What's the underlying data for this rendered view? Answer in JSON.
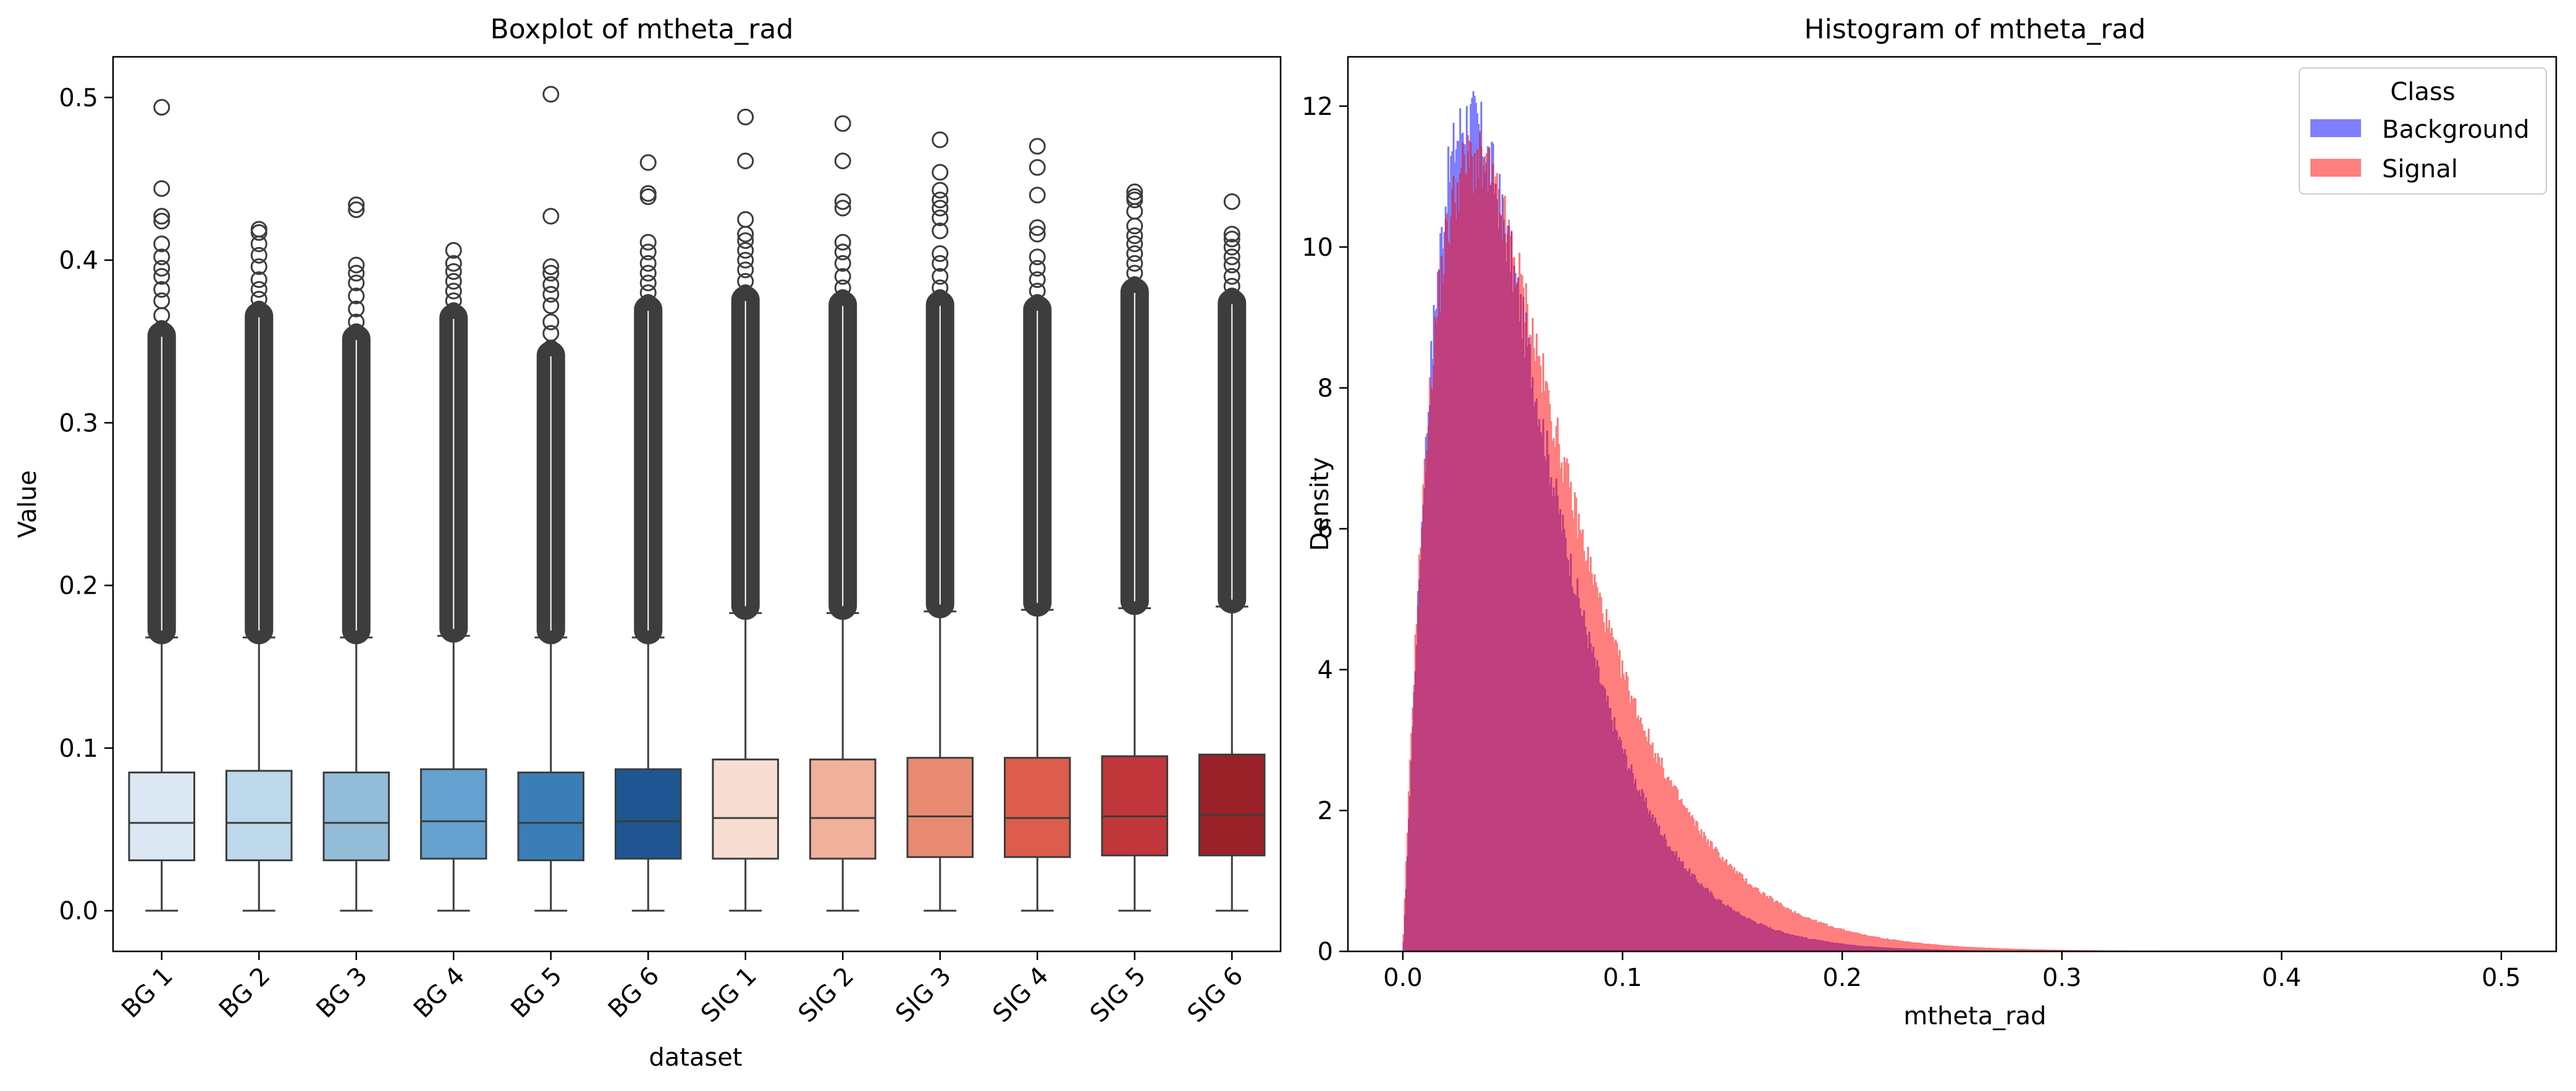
{
  "chart_data": [
    {
      "type": "box",
      "title": "Boxplot of mtheta_rad",
      "xlabel": "dataset",
      "ylabel": "Value",
      "ylim": [
        -0.025,
        0.525
      ],
      "yticks": [
        0.0,
        0.1,
        0.2,
        0.3,
        0.4,
        0.5
      ],
      "ytick_labels": [
        "0.0",
        "0.1",
        "0.2",
        "0.3",
        "0.4",
        "0.5"
      ],
      "categories": [
        "BG 1",
        "BG 2",
        "BG 3",
        "BG 4",
        "BG 5",
        "BG 6",
        "SIG 1",
        "SIG 2",
        "SIG 3",
        "SIG 4",
        "SIG 5",
        "SIG 6"
      ],
      "boxes": [
        {
          "min": 0.0,
          "q1": 0.031,
          "median": 0.054,
          "q3": 0.085,
          "whisker_high": 0.168,
          "fill": "#dbe8f4",
          "fliers": [
            0.494,
            0.444,
            0.427,
            0.424,
            0.41,
            0.402,
            0.395,
            0.39,
            0.382,
            0.375,
            0.366,
            0.358
          ]
        },
        {
          "min": 0.0,
          "q1": 0.031,
          "median": 0.054,
          "q3": 0.086,
          "whisker_high": 0.168,
          "fill": "#bdd7eb",
          "fliers": [
            0.419,
            0.417,
            0.41,
            0.403,
            0.396,
            0.388,
            0.382,
            0.376,
            0.37
          ]
        },
        {
          "min": 0.0,
          "q1": 0.031,
          "median": 0.054,
          "q3": 0.085,
          "whisker_high": 0.168,
          "fill": "#93bcd9",
          "fliers": [
            0.434,
            0.431,
            0.397,
            0.392,
            0.386,
            0.378,
            0.37,
            0.362,
            0.356
          ]
        },
        {
          "min": 0.0,
          "q1": 0.032,
          "median": 0.055,
          "q3": 0.087,
          "whisker_high": 0.169,
          "fill": "#65a2cf",
          "fliers": [
            0.406,
            0.398,
            0.393,
            0.387,
            0.381,
            0.375,
            0.369
          ]
        },
        {
          "min": 0.0,
          "q1": 0.031,
          "median": 0.054,
          "q3": 0.085,
          "whisker_high": 0.168,
          "fill": "#3b7db7",
          "fliers": [
            0.502,
            0.427,
            0.396,
            0.392,
            0.385,
            0.379,
            0.372,
            0.362,
            0.355,
            0.346
          ]
        },
        {
          "min": 0.0,
          "q1": 0.032,
          "median": 0.055,
          "q3": 0.087,
          "whisker_high": 0.168,
          "fill": "#1f5691",
          "fliers": [
            0.46,
            0.441,
            0.439,
            0.411,
            0.405,
            0.398,
            0.392,
            0.386,
            0.38,
            0.374
          ]
        },
        {
          "min": 0.0,
          "q1": 0.032,
          "median": 0.057,
          "q3": 0.093,
          "whisker_high": 0.183,
          "fill": "#f8ded2",
          "fliers": [
            0.488,
            0.461,
            0.425,
            0.416,
            0.412,
            0.406,
            0.4,
            0.394,
            0.387,
            0.38
          ]
        },
        {
          "min": 0.0,
          "q1": 0.032,
          "median": 0.057,
          "q3": 0.093,
          "whisker_high": 0.183,
          "fill": "#f1b09a",
          "fliers": [
            0.484,
            0.461,
            0.436,
            0.432,
            0.411,
            0.405,
            0.398,
            0.39,
            0.383,
            0.377
          ]
        },
        {
          "min": 0.0,
          "q1": 0.033,
          "median": 0.058,
          "q3": 0.094,
          "whisker_high": 0.184,
          "fill": "#e88a72",
          "fliers": [
            0.474,
            0.454,
            0.443,
            0.437,
            0.432,
            0.426,
            0.418,
            0.404,
            0.398,
            0.39,
            0.383,
            0.377
          ]
        },
        {
          "min": 0.0,
          "q1": 0.033,
          "median": 0.057,
          "q3": 0.094,
          "whisker_high": 0.185,
          "fill": "#dc5d4b",
          "fliers": [
            0.47,
            0.457,
            0.44,
            0.42,
            0.416,
            0.402,
            0.395,
            0.388,
            0.381,
            0.374
          ]
        },
        {
          "min": 0.0,
          "q1": 0.034,
          "median": 0.058,
          "q3": 0.095,
          "whisker_high": 0.186,
          "fill": "#c0363a",
          "fliers": [
            0.442,
            0.439,
            0.437,
            0.43,
            0.421,
            0.415,
            0.41,
            0.404,
            0.398,
            0.392,
            0.385
          ]
        },
        {
          "min": 0.0,
          "q1": 0.034,
          "median": 0.059,
          "q3": 0.096,
          "whisker_high": 0.187,
          "fill": "#9b2128",
          "fliers": [
            0.436,
            0.416,
            0.413,
            0.408,
            0.402,
            0.397,
            0.39,
            0.384,
            0.378
          ]
        }
      ],
      "grid": false
    },
    {
      "type": "histogram",
      "title": "Histogram of mtheta_rad",
      "xlabel": "mtheta_rad",
      "ylabel": "Density",
      "xlim": [
        -0.025,
        0.525
      ],
      "ylim": [
        0,
        12.7
      ],
      "xticks": [
        0.0,
        0.1,
        0.2,
        0.3,
        0.4,
        0.5
      ],
      "xtick_labels": [
        "0.0",
        "0.1",
        "0.2",
        "0.3",
        "0.4",
        "0.5"
      ],
      "yticks": [
        0,
        2,
        4,
        6,
        8,
        10,
        12
      ],
      "ytick_labels": [
        "0",
        "2",
        "4",
        "6",
        "8",
        "10",
        "12"
      ],
      "legend": {
        "title": "Class",
        "placement": "top-right",
        "entries": [
          "Background",
          "Signal"
        ]
      },
      "series": [
        {
          "name": "Background",
          "color": "#0000ff",
          "alpha": 0.5,
          "peak_x": 0.03,
          "peak_density": 11.8
        },
        {
          "name": "Signal",
          "color": "#ff0000",
          "alpha": 0.5,
          "peak_x": 0.032,
          "peak_density": 11.2
        }
      ],
      "grid": false
    }
  ]
}
